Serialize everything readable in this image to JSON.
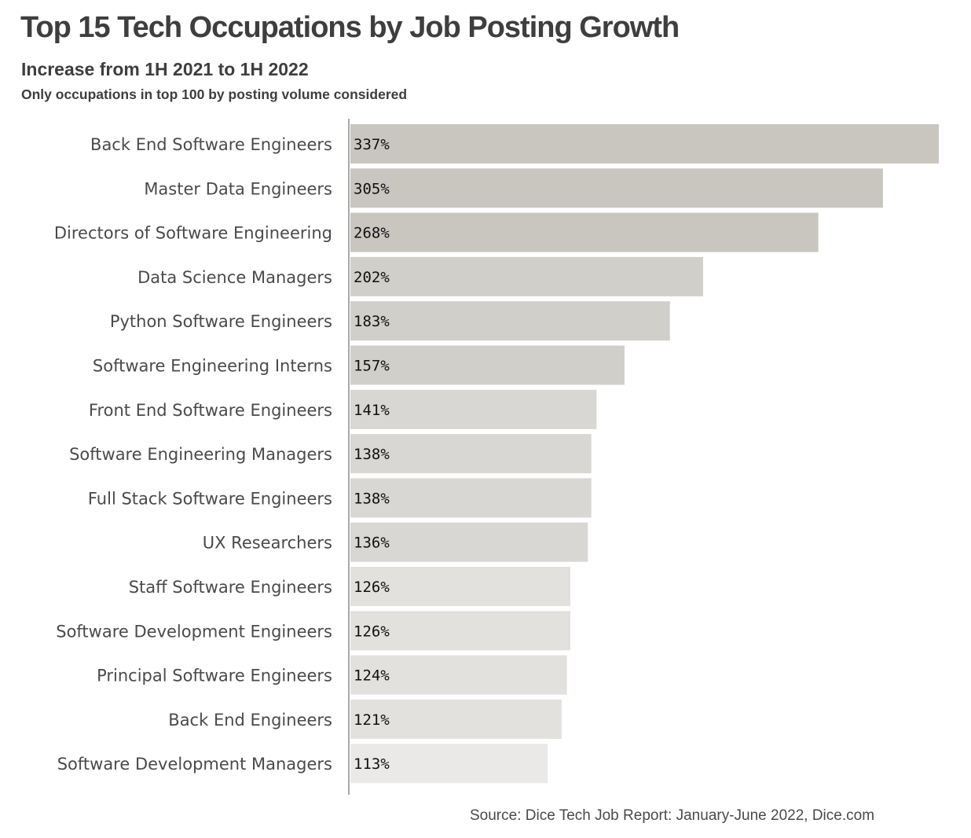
{
  "chart_data": {
    "type": "bar",
    "orientation": "horizontal",
    "title": "Top 15 Tech Occupations  by Job Posting Growth",
    "subtitle": "Increase from 1H 2021 to 1H 2022",
    "note": "Only occupations in top 100 by posting volume considered",
    "source": "Source: Dice Tech Job Report: January-June 2022, Dice.com",
    "categories": [
      "Back End Software Engineers",
      "Master Data Engineers",
      "Directors of Software Engineering",
      "Data Science Managers",
      "Python Software Engineers",
      "Software Engineering Interns",
      "Front End Software Engineers",
      "Software Engineering Managers",
      "Full Stack Software Engineers",
      "UX Researchers",
      "Staff Software Engineers",
      "Software Development Engineers",
      "Principal Software Engineers",
      "Back End Engineers",
      "Software Development Managers"
    ],
    "values": [
      337,
      305,
      268,
      202,
      183,
      157,
      141,
      138,
      138,
      136,
      126,
      126,
      124,
      121,
      113
    ],
    "value_labels": [
      "337%",
      "305%",
      "268%",
      "202%",
      "183%",
      "157%",
      "141%",
      "138%",
      "138%",
      "136%",
      "126%",
      "126%",
      "124%",
      "121%",
      "113%"
    ],
    "value_unit": "%",
    "xlim": [
      0,
      337
    ],
    "grid": false,
    "legend": "none",
    "colors": {
      "bar_shades": [
        "#c9c6c0",
        "#c9c6c0",
        "#c9c6c0",
        "#d1cfca",
        "#d1cfca",
        "#d1cfca",
        "#d9d7d3",
        "#d9d7d3",
        "#d9d7d3",
        "#d9d7d3",
        "#e2e1de",
        "#e2e1de",
        "#e2e1de",
        "#e2e1de",
        "#eae9e7"
      ],
      "axis": "#a9a9a9"
    }
  }
}
